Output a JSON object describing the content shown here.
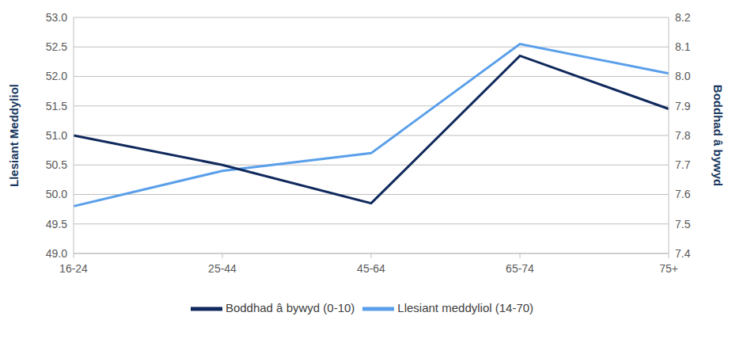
{
  "chart_data": {
    "type": "line",
    "y_label": "Llesiant Meddyliol",
    "y2_label": "Boddhad â bywyd",
    "categories": [
      "16-24",
      "25-44",
      "45-64",
      "65-74",
      "75+"
    ],
    "series": [
      {
        "name": "Llesiant meddyliol (14-70)",
        "color": "#5a9fea",
        "values": [
          49.8,
          50.4,
          50.7,
          52.55,
          52.05
        ]
      },
      {
        "name": "Boddhad â bywyd (0-10)",
        "color": "#10295c",
        "values": [
          7.8,
          7.7,
          7.57,
          8.07,
          7.89
        ],
        "axis": "y2"
      }
    ],
    "ylim": [
      49,
      53
    ],
    "yticks": [
      {
        "value": 49,
        "label": "49.0"
      },
      49.5,
      {
        "value": 50,
        "label": "50.0"
      },
      50.5,
      {
        "value": 51,
        "label": "51.0"
      },
      51.5,
      {
        "value": 52,
        "label": "52.0"
      },
      52.5,
      {
        "value": 53,
        "label": "53.0"
      }
    ],
    "y2lim": [
      7.4,
      8.2
    ],
    "y2ticks": [
      7.4,
      7.5,
      7.6,
      7.7,
      7.8,
      7.9,
      {
        "value": 8,
        "label": "8.0"
      },
      8.1,
      8.2
    ],
    "grid": true,
    "legend": "bottom"
  }
}
